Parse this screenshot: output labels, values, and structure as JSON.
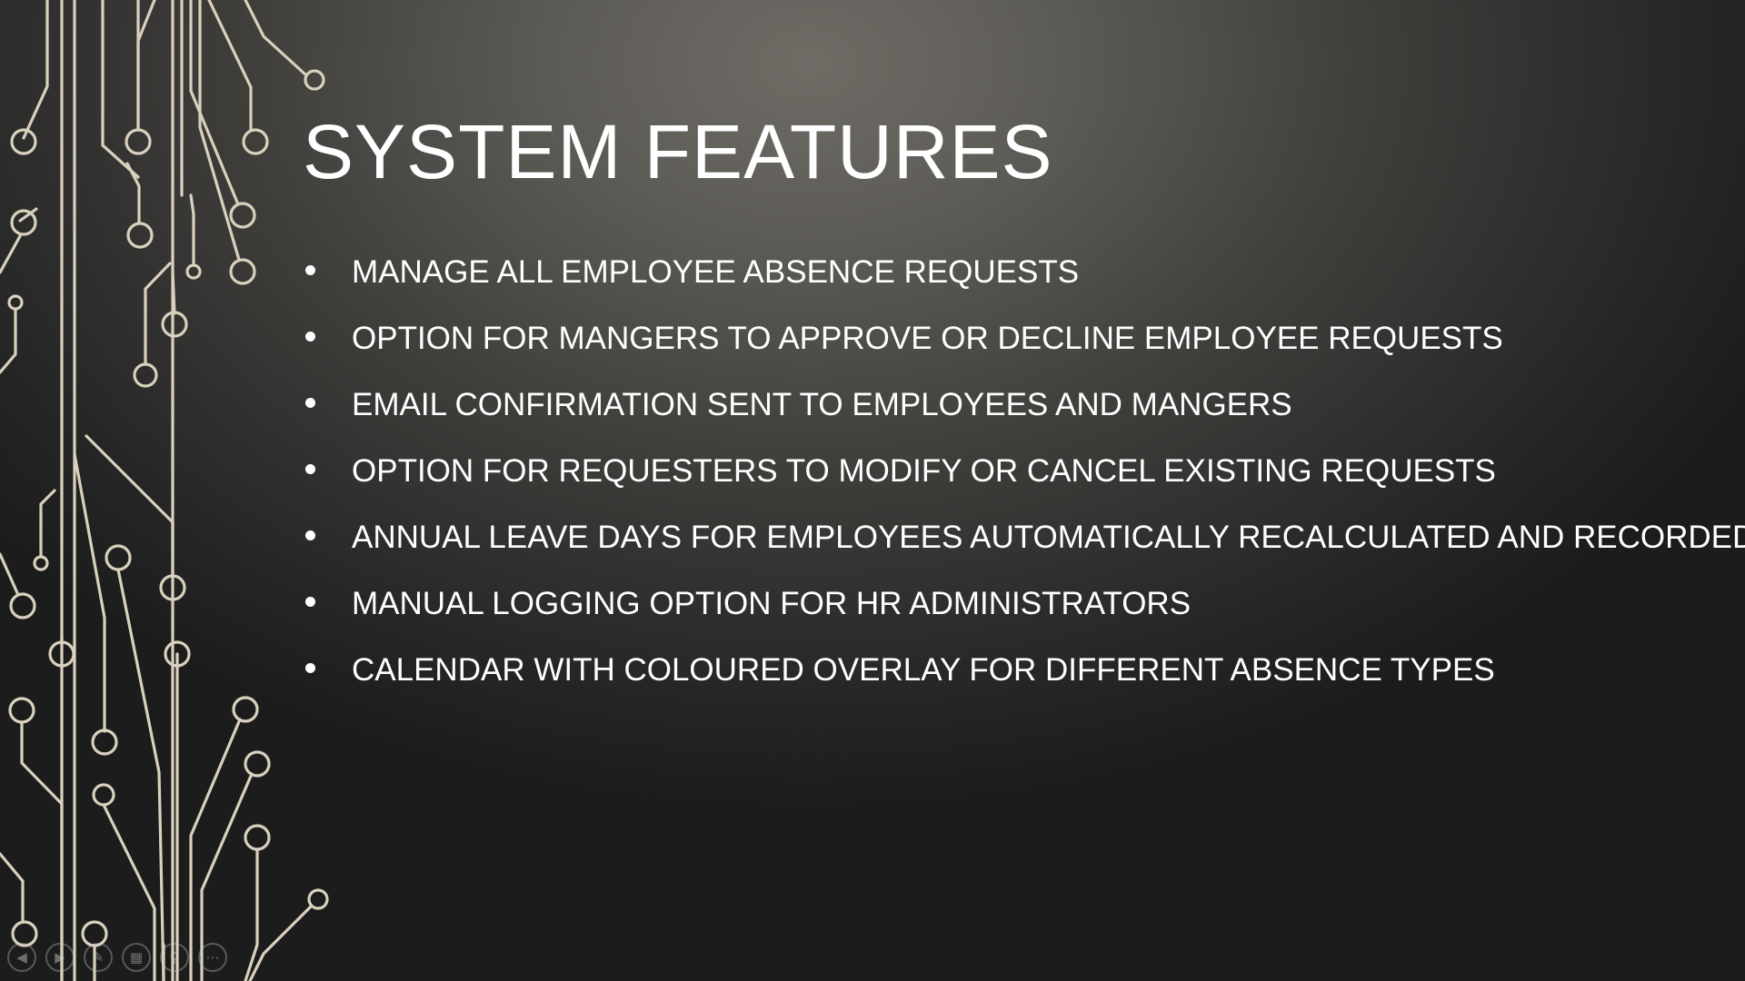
{
  "slide": {
    "title": "SYSTEM FEATURES",
    "bullets": [
      "MANAGE ALL EMPLOYEE ABSENCE REQUESTS",
      "OPTION FOR MANGERS TO APPROVE OR DECLINE EMPLOYEE REQUESTS",
      "EMAIL CONFIRMATION SENT TO EMPLOYEES AND MANGERS",
      "OPTION FOR REQUESTERS TO MODIFY OR CANCEL EXISTING REQUESTS",
      "ANNUAL LEAVE DAYS FOR EMPLOYEES AUTOMATICALLY RECALCULATED AND RECORDED",
      "MANUAL LOGGING OPTION FOR HR ADMINISTRATORS",
      "CALENDAR WITH COLOURED OVERLAY FOR DIFFERENT ABSENCE TYPES"
    ]
  },
  "nav_bar": {
    "buttons": [
      {
        "name": "previous-slide-button",
        "icon": "arrow-left-icon",
        "glyph": "◀"
      },
      {
        "name": "next-slide-button",
        "icon": "arrow-right-icon",
        "glyph": "▶"
      },
      {
        "name": "pen-button",
        "icon": "pen-icon",
        "glyph": "✎"
      },
      {
        "name": "see-all-slides-button",
        "icon": "grid-icon",
        "glyph": "▦"
      },
      {
        "name": "zoom-button",
        "icon": "magnifier-icon",
        "glyph": "⚲"
      },
      {
        "name": "more-options-button",
        "icon": "ellipsis-icon",
        "glyph": "⋯"
      }
    ]
  },
  "colors": {
    "circuit": "#d9d1bd",
    "text": "#ffffff"
  }
}
